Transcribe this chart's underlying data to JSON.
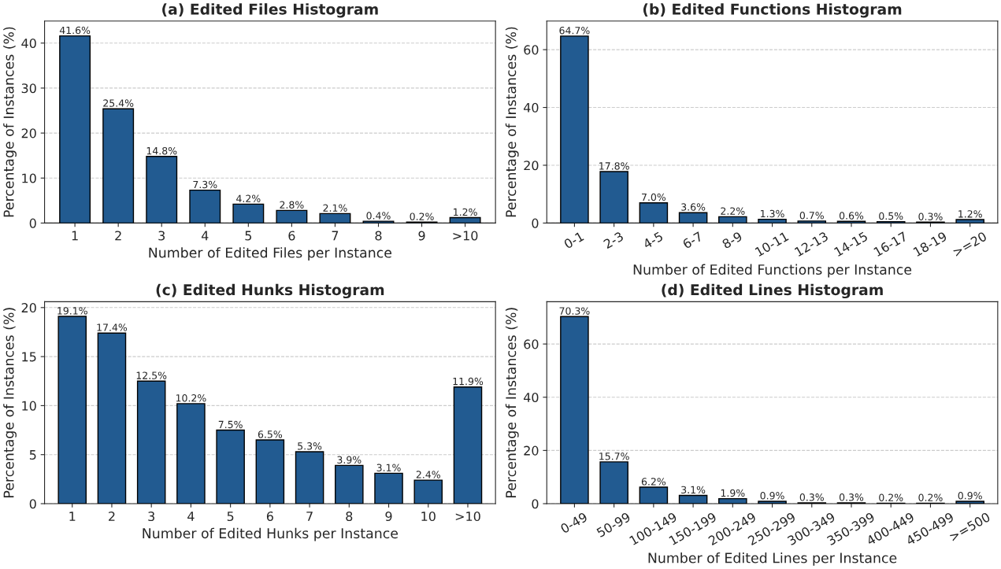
{
  "chart_data": [
    {
      "type": "bar",
      "title": "(a) Edited Files Histogram",
      "xlabel": "Number of Edited Files per Instance",
      "ylabel": "Percentage of Instances (%)",
      "categories": [
        "1",
        "2",
        "3",
        "4",
        "5",
        "6",
        "7",
        "8",
        "9",
        ">10"
      ],
      "values": [
        41.6,
        25.4,
        14.8,
        7.3,
        4.2,
        2.8,
        2.1,
        0.4,
        0.2,
        1.2
      ],
      "value_labels": [
        "41.6%",
        "25.4%",
        "14.8%",
        "7.3%",
        "4.2%",
        "2.8%",
        "2.1%",
        "0.4%",
        "0.2%",
        "1.2%"
      ],
      "color": "#225b91",
      "ylim": [
        0,
        44.9
      ],
      "yticks": [
        0,
        10,
        20,
        30,
        40
      ],
      "grid": "y",
      "legend": false
    },
    {
      "type": "bar",
      "title": "(b) Edited Functions Histogram",
      "xlabel": "Number of Edited Functions per Instance",
      "ylabel": "Percentage of Instances (%)",
      "categories": [
        "0-1",
        "2-3",
        "4-5",
        "6-7",
        "8-9",
        "10-11",
        "12-13",
        "14-15",
        "16-17",
        "18-19",
        ">=20"
      ],
      "values": [
        64.7,
        17.8,
        7.0,
        3.6,
        2.2,
        1.3,
        0.7,
        0.6,
        0.5,
        0.3,
        1.2
      ],
      "value_labels": [
        "64.7%",
        "17.8%",
        "7.0%",
        "3.6%",
        "2.2%",
        "1.3%",
        "0.7%",
        "0.6%",
        "0.5%",
        "0.3%",
        "1.2%"
      ],
      "color": "#225b91",
      "ylim": [
        0,
        69.9
      ],
      "yticks": [
        0,
        20,
        40,
        60
      ],
      "grid": "y",
      "legend": false
    },
    {
      "type": "bar",
      "title": "(c) Edited Hunks Histogram",
      "xlabel": "Number of Edited Hunks per Instance",
      "ylabel": "Percentage of Instances (%)",
      "categories": [
        "1",
        "2",
        "3",
        "4",
        "5",
        "6",
        "7",
        "8",
        "9",
        "10",
        ">10"
      ],
      "values": [
        19.1,
        17.4,
        12.5,
        10.2,
        7.5,
        6.5,
        5.3,
        3.9,
        3.1,
        2.4,
        11.9
      ],
      "value_labels": [
        "19.1%",
        "17.4%",
        "12.5%",
        "10.2%",
        "7.5%",
        "6.5%",
        "5.3%",
        "3.9%",
        "3.1%",
        "2.4%",
        "11.9%"
      ],
      "color": "#225b91",
      "ylim": [
        0,
        20.6
      ],
      "yticks": [
        0,
        5,
        10,
        15,
        20
      ],
      "grid": "y",
      "legend": false
    },
    {
      "type": "bar",
      "title": "(d) Edited Lines Histogram",
      "xlabel": "Number of Edited Lines per Instance",
      "ylabel": "Percentage of Instances (%)",
      "categories": [
        "0-49",
        "50-99",
        "100-149",
        "150-199",
        "200-249",
        "250-299",
        "300-349",
        "350-399",
        "400-449",
        "450-499",
        ">=500"
      ],
      "values": [
        70.3,
        15.7,
        6.2,
        3.1,
        1.9,
        0.9,
        0.3,
        0.3,
        0.2,
        0.2,
        0.9
      ],
      "value_labels": [
        "70.3%",
        "15.7%",
        "6.2%",
        "3.1%",
        "1.9%",
        "0.9%",
        "0.3%",
        "0.3%",
        "0.2%",
        "0.2%",
        "0.9%"
      ],
      "color": "#225b91",
      "ylim": [
        0,
        75.9
      ],
      "yticks": [
        0,
        20,
        40,
        60
      ],
      "grid": "y",
      "legend": false
    }
  ]
}
